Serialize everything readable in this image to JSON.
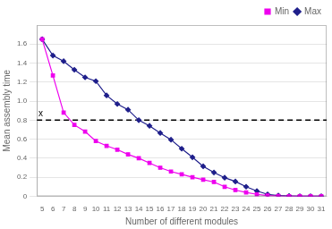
{
  "chart_data": {
    "type": "line",
    "x": [
      5,
      6,
      7,
      8,
      9,
      10,
      11,
      12,
      13,
      14,
      15,
      16,
      17,
      18,
      19,
      20,
      21,
      22,
      23,
      24,
      25,
      26,
      27,
      28,
      29,
      30,
      31
    ],
    "series": [
      {
        "name": "Min",
        "color": "#EE00EE",
        "marker": "square",
        "values": [
          1.65,
          1.27,
          0.88,
          0.75,
          0.68,
          0.58,
          0.53,
          0.49,
          0.44,
          0.4,
          0.35,
          0.3,
          0.26,
          0.23,
          0.2,
          0.175,
          0.15,
          0.1,
          0.065,
          0.04,
          0.02,
          0.008,
          0.003,
          0.001,
          0.0,
          0.0,
          0.0
        ]
      },
      {
        "name": "Max",
        "color": "#1F1F8B",
        "marker": "diamond",
        "values": [
          1.65,
          1.48,
          1.42,
          1.33,
          1.25,
          1.21,
          1.06,
          0.97,
          0.91,
          0.8,
          0.74,
          0.665,
          0.595,
          0.5,
          0.41,
          0.315,
          0.25,
          0.195,
          0.155,
          0.1,
          0.055,
          0.02,
          0.008,
          0.003,
          0.0,
          0.0,
          0.0
        ]
      }
    ],
    "hline": {
      "y": 0.8,
      "label": "x",
      "x": 4.65,
      "line_style": "dashed",
      "color": "black"
    },
    "x_label": "Number of different modules",
    "y_label": "Mean assembly time",
    "xlim": [
      4.5,
      31.5
    ],
    "xticks": [
      5,
      6,
      7,
      8,
      9,
      10,
      11,
      12,
      13,
      14,
      15,
      16,
      17,
      18,
      19,
      20,
      21,
      22,
      23,
      24,
      25,
      26,
      27,
      28,
      29,
      30,
      31
    ],
    "ylim": [
      0,
      1.8
    ],
    "yticks": [
      0,
      0.2,
      0.4,
      0.6,
      0.8,
      {
        "value": 1.0,
        "label": "1.0"
      },
      1.2,
      1.4,
      1.6
    ],
    "grid": "y",
    "legend": "upper right"
  }
}
